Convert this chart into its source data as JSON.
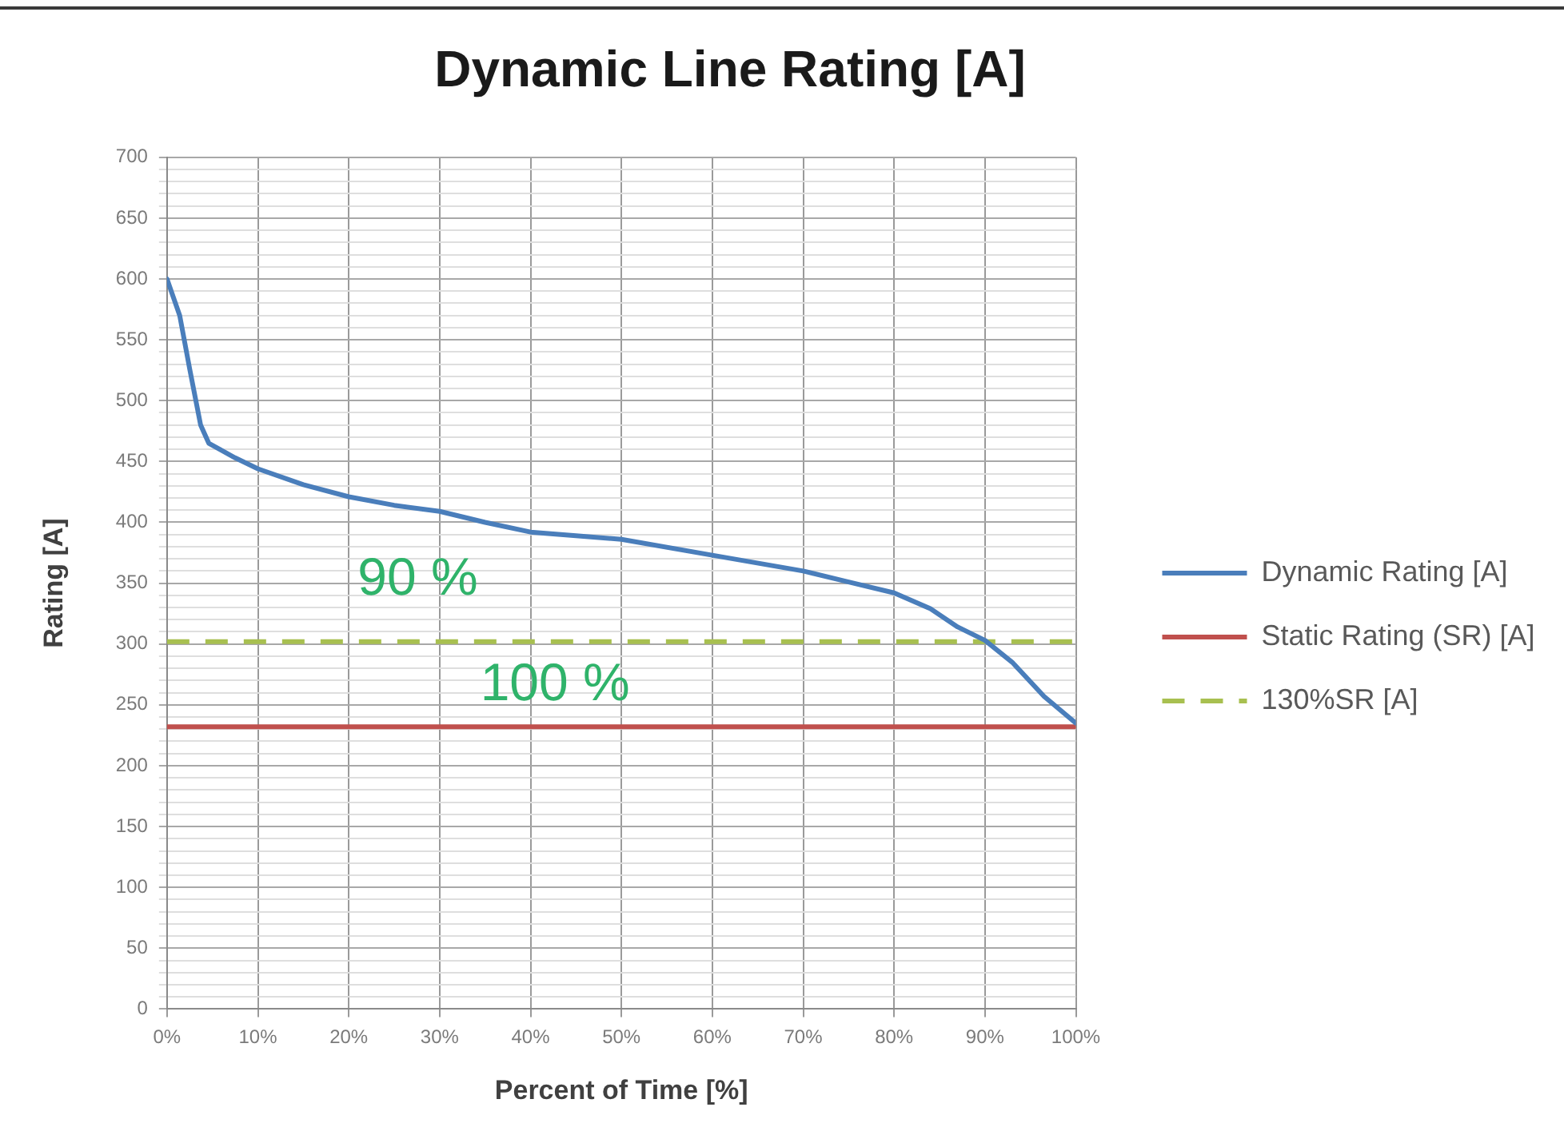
{
  "chart_data": {
    "type": "line",
    "title": "Dynamic Line Rating [A]",
    "xlabel": "Percent of Time [%]",
    "ylabel": "Rating [A]",
    "series": [
      {
        "name": "Dynamic Rating [A]",
        "color": "#4a7ebb",
        "line_style": "solid",
        "x": [
          0,
          1.4,
          2.5,
          3.7,
          4.6,
          5.8,
          7.5,
          10,
          15,
          20,
          25,
          30,
          35,
          40,
          45,
          50,
          60,
          70,
          75,
          80,
          84,
          87,
          90,
          93,
          96.5,
          100
        ],
        "values": [
          600,
          570,
          526,
          480,
          465,
          460,
          453,
          444,
          431,
          421,
          414,
          409,
          400,
          392,
          389,
          386,
          373,
          360,
          351,
          342,
          329,
          314,
          303,
          285,
          257,
          235
        ]
      },
      {
        "name": "Static Rating (SR) [A]",
        "color": "#c0504d",
        "line_style": "solid",
        "x": [
          0,
          100
        ],
        "values": [
          232,
          232
        ]
      },
      {
        "name": "130%SR [A]",
        "color": "#a8c050",
        "line_style": "dashed",
        "x": [
          0,
          100
        ],
        "values": [
          302,
          302
        ]
      }
    ],
    "xlim": [
      0,
      100
    ],
    "xticks": [
      {
        "value": 0,
        "label": "0%"
      },
      {
        "value": 10,
        "label": "10%"
      },
      {
        "value": 20,
        "label": "20%"
      },
      {
        "value": 30,
        "label": "30%"
      },
      {
        "value": 40,
        "label": "40%"
      },
      {
        "value": 50,
        "label": "50%"
      },
      {
        "value": 60,
        "label": "60%"
      },
      {
        "value": 70,
        "label": "70%"
      },
      {
        "value": 80,
        "label": "80%"
      },
      {
        "value": 90,
        "label": "90%"
      },
      {
        "value": 100,
        "label": "100%"
      }
    ],
    "ylim": [
      0,
      700
    ],
    "yticks": [
      0,
      {
        "value": 10,
        "label": null
      },
      {
        "value": 20,
        "label": null
      },
      {
        "value": 30,
        "label": null
      },
      {
        "value": 40,
        "label": null
      },
      50,
      {
        "value": 60,
        "label": null
      },
      {
        "value": 70,
        "label": null
      },
      {
        "value": 80,
        "label": null
      },
      {
        "value": 90,
        "label": null
      },
      100,
      {
        "value": 110,
        "label": null
      },
      {
        "value": 120,
        "label": null
      },
      {
        "value": 130,
        "label": null
      },
      {
        "value": 140,
        "label": null
      },
      150,
      {
        "value": 160,
        "label": null
      },
      {
        "value": 170,
        "label": null
      },
      {
        "value": 180,
        "label": null
      },
      {
        "value": 190,
        "label": null
      },
      200,
      {
        "value": 210,
        "label": null
      },
      {
        "value": 220,
        "label": null
      },
      {
        "value": 230,
        "label": null
      },
      {
        "value": 240,
        "label": null
      },
      250,
      {
        "value": 260,
        "label": null
      },
      {
        "value": 270,
        "label": null
      },
      {
        "value": 280,
        "label": null
      },
      {
        "value": 290,
        "label": null
      },
      300,
      {
        "value": 310,
        "label": null
      },
      {
        "value": 320,
        "label": null
      },
      {
        "value": 330,
        "label": null
      },
      {
        "value": 340,
        "label": null
      },
      350,
      {
        "value": 360,
        "label": null
      },
      {
        "value": 370,
        "label": null
      },
      {
        "value": 380,
        "label": null
      },
      {
        "value": 390,
        "label": null
      },
      400,
      {
        "value": 410,
        "label": null
      },
      {
        "value": 420,
        "label": null
      },
      {
        "value": 430,
        "label": null
      },
      {
        "value": 440,
        "label": null
      },
      450,
      {
        "value": 460,
        "label": null
      },
      {
        "value": 470,
        "label": null
      },
      {
        "value": 480,
        "label": null
      },
      {
        "value": 490,
        "label": null
      },
      500,
      {
        "value": 510,
        "label": null
      },
      {
        "value": 520,
        "label": null
      },
      {
        "value": 530,
        "label": null
      },
      {
        "value": 540,
        "label": null
      },
      550,
      {
        "value": 560,
        "label": null
      },
      {
        "value": 570,
        "label": null
      },
      {
        "value": 580,
        "label": null
      },
      {
        "value": 590,
        "label": null
      },
      600,
      {
        "value": 610,
        "label": null
      },
      {
        "value": 620,
        "label": null
      },
      {
        "value": 630,
        "label": null
      },
      {
        "value": 640,
        "label": null
      },
      650,
      {
        "value": 660,
        "label": null
      },
      {
        "value": 670,
        "label": null
      },
      {
        "value": 680,
        "label": null
      },
      {
        "value": 690,
        "label": null
      },
      700
    ],
    "grid": true,
    "legend": "right",
    "marker": "none",
    "annotations": [
      "90 %",
      "100 %"
    ]
  }
}
